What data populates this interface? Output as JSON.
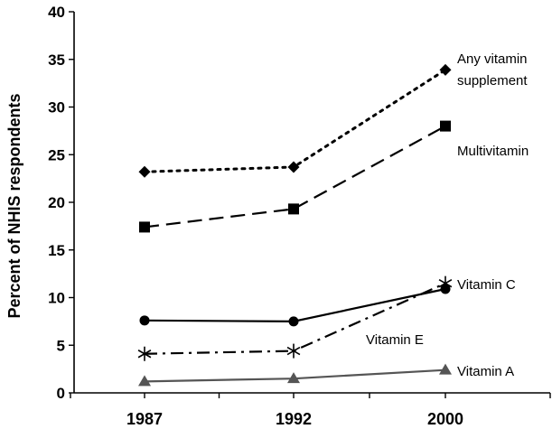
{
  "chart_data": {
    "type": "line",
    "title": "",
    "xlabel": "",
    "ylabel": "Percent of NHIS respondents",
    "x": [
      "1987",
      "1992",
      "2000"
    ],
    "ylim": [
      0,
      40
    ],
    "yticks": [
      "0",
      "5",
      "10",
      "15",
      "20",
      "25",
      "30",
      "35",
      "40"
    ],
    "grid": false,
    "legend": "inline labels at right end of each line",
    "series": [
      {
        "name": "Any vitamin supplement",
        "label_lines": [
          "Any vitamin",
          "supplement"
        ],
        "values": [
          23.2,
          23.7,
          33.9
        ],
        "marker": "diamond",
        "line_style": "dotted",
        "color": "#000000"
      },
      {
        "name": "Multivitamin",
        "label_lines": [
          "Multivitamin"
        ],
        "values": [
          17.4,
          19.3,
          28.0
        ],
        "marker": "square",
        "line_style": "long-dash",
        "color": "#000000"
      },
      {
        "name": "Vitamin C",
        "label_lines": [
          "Vitamin C"
        ],
        "values": [
          7.6,
          7.5,
          10.9
        ],
        "marker": "circle",
        "line_style": "solid",
        "color": "#000000"
      },
      {
        "name": "Vitamin E",
        "label_lines": [
          "Vitamin E"
        ],
        "values": [
          4.1,
          4.4,
          11.5
        ],
        "marker": "asterisk",
        "line_style": "dash-dot",
        "color": "#000000"
      },
      {
        "name": "Vitamin A",
        "label_lines": [
          "Vitamin A"
        ],
        "values": [
          1.2,
          1.5,
          2.4
        ],
        "marker": "triangle",
        "line_style": "solid",
        "color": "#555555"
      }
    ]
  }
}
